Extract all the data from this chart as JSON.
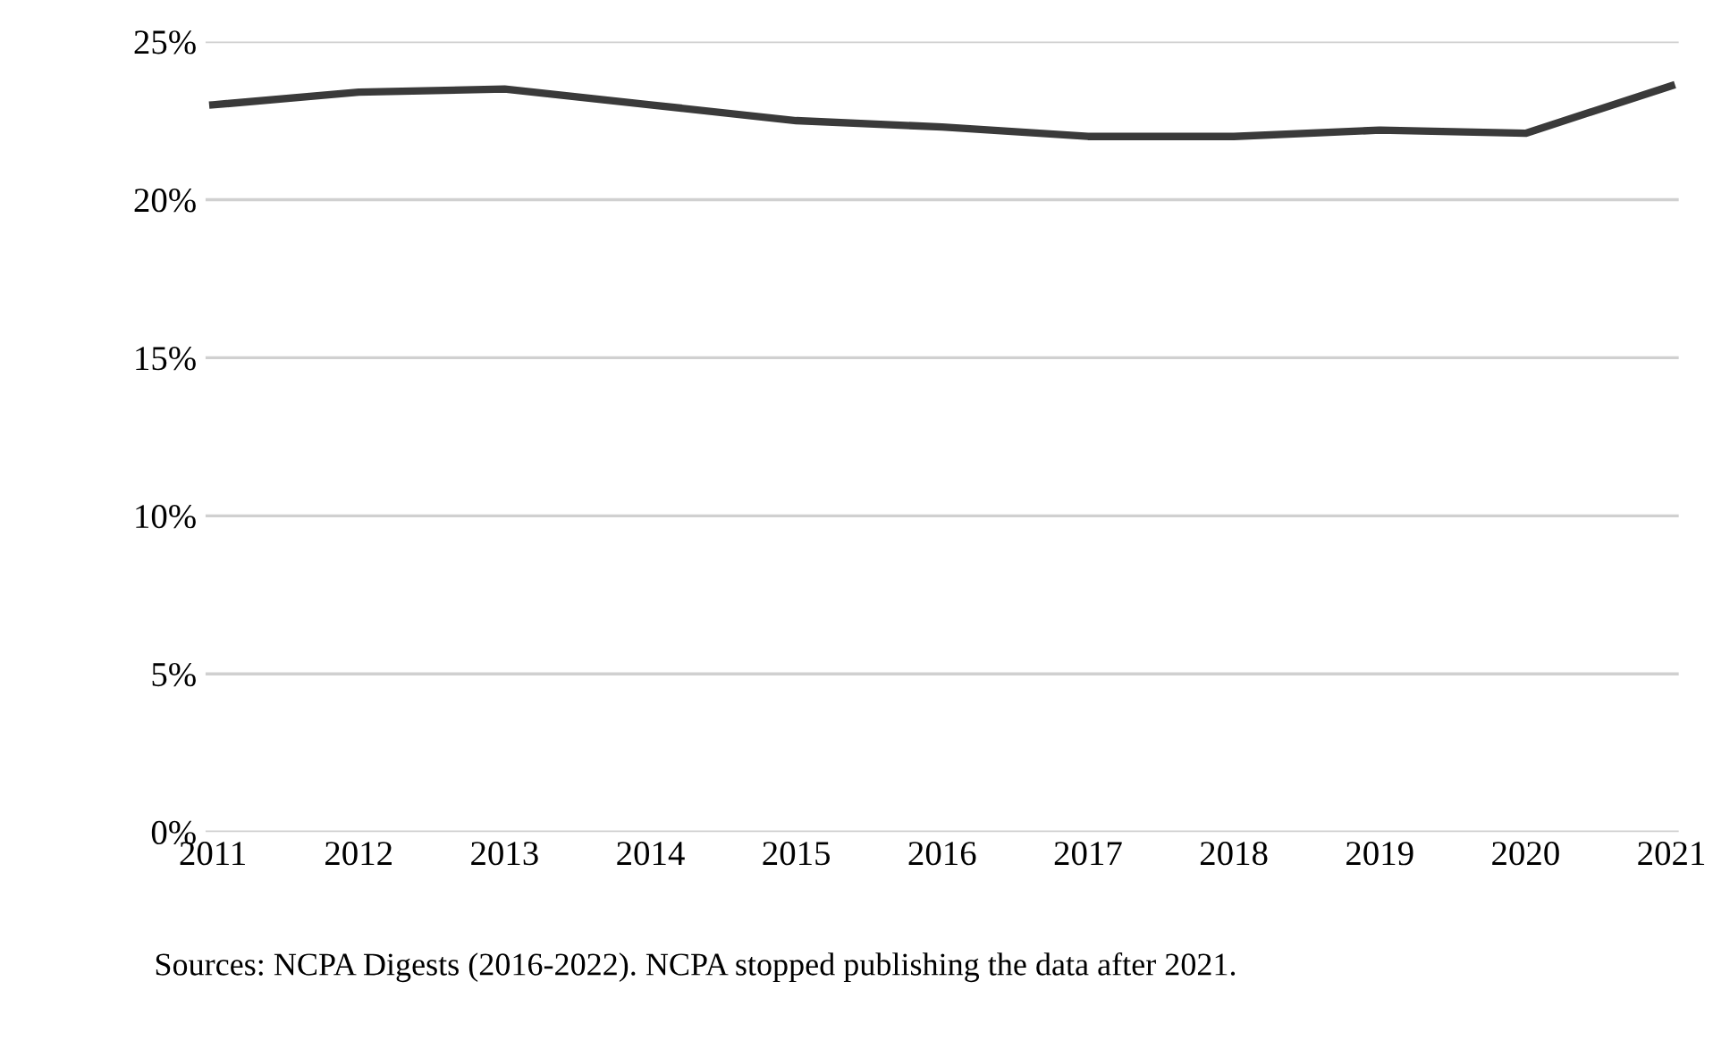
{
  "chart_data": {
    "type": "line",
    "categories": [
      "2011",
      "2012",
      "2013",
      "2014",
      "2015",
      "2016",
      "2017",
      "2018",
      "2019",
      "2020",
      "2021"
    ],
    "series": [
      {
        "color": "#3a3a3a",
        "values": [
          23.0,
          23.4,
          23.5,
          23.0,
          22.5,
          22.3,
          22.0,
          22.0,
          22.2,
          22.1,
          23.6
        ]
      }
    ],
    "ylim": [
      0,
      25
    ],
    "yticks": [
      {
        "value": 0,
        "label": "0%"
      },
      {
        "value": 5,
        "label": "5%"
      },
      {
        "value": 10,
        "label": "10%"
      },
      {
        "value": 15,
        "label": "15%"
      },
      {
        "value": 20,
        "label": "20%"
      },
      {
        "value": 25,
        "label": "25%"
      }
    ],
    "grid": "y",
    "annotations": [
      "Sources: NCPA Digests (2016-2022). NCPA stopped publishing the data after 2021."
    ]
  }
}
